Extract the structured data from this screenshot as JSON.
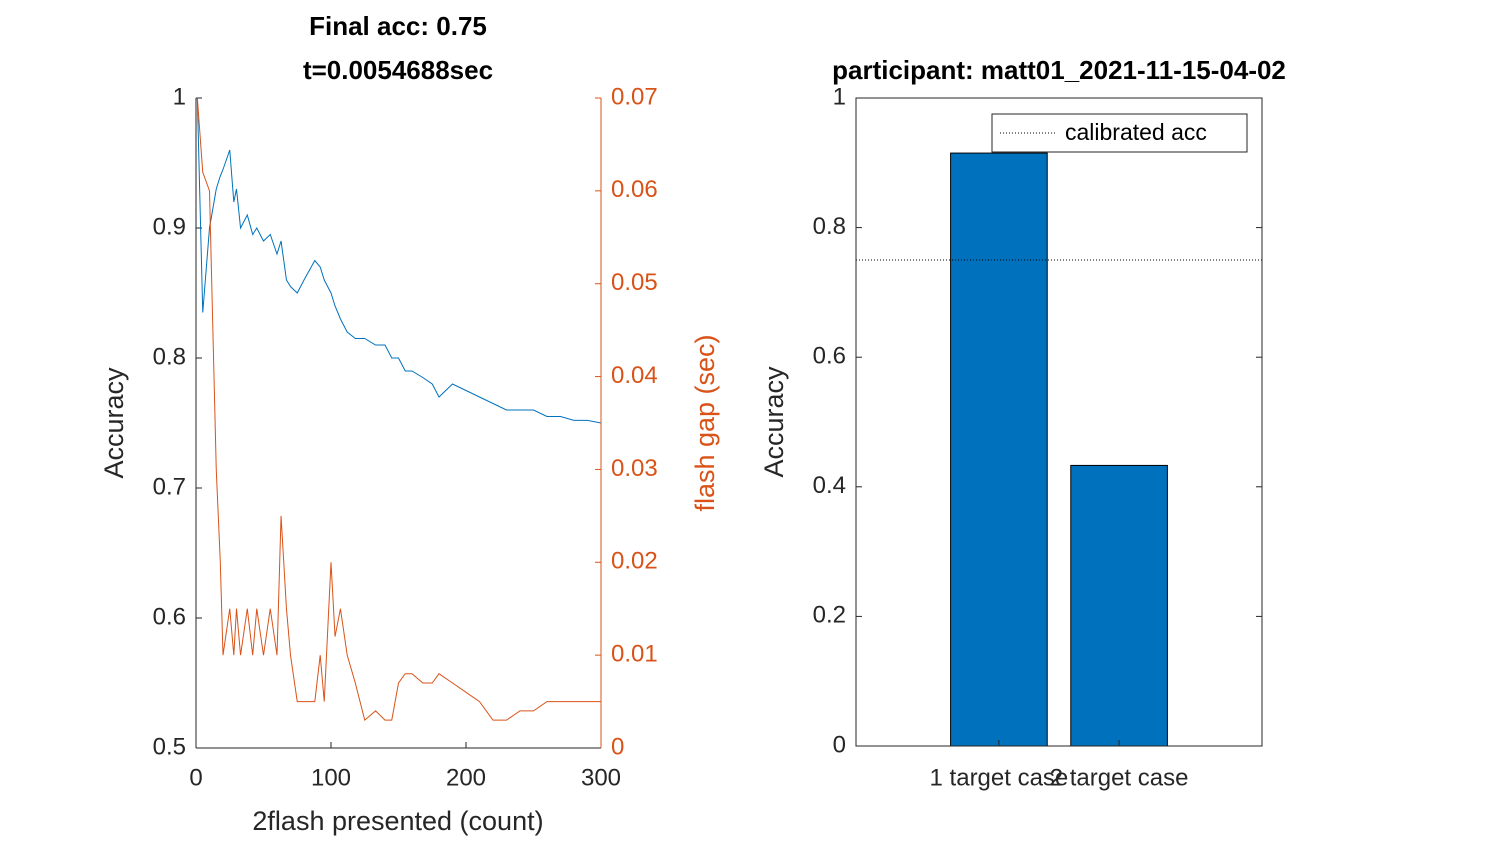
{
  "chart_data": [
    {
      "type": "line",
      "title": [
        "Final acc: 0.75",
        "t=0.0054688sec"
      ],
      "xlabel": "2flash presented (count)",
      "ylabel": "Accuracy",
      "y2label": "flash gap (sec)",
      "x": [
        1,
        5,
        10,
        15,
        18,
        20,
        25,
        28,
        30,
        33,
        38,
        42,
        45,
        50,
        55,
        60,
        63,
        67,
        70,
        75,
        80,
        88,
        92,
        95,
        100,
        103,
        107,
        112,
        118,
        125,
        133,
        140,
        145,
        150,
        155,
        160,
        168,
        175,
        180,
        190,
        200,
        210,
        220,
        230,
        240,
        250,
        260,
        270,
        280,
        290,
        300
      ],
      "series": [
        {
          "color": "#0072BD",
          "axis": "y",
          "values": [
            1.0,
            0.835,
            0.9,
            0.93,
            0.94,
            0.945,
            0.96,
            0.92,
            0.93,
            0.9,
            0.91,
            0.895,
            0.9,
            0.89,
            0.895,
            0.88,
            0.89,
            0.86,
            0.855,
            0.85,
            0.86,
            0.875,
            0.87,
            0.86,
            0.85,
            0.84,
            0.83,
            0.82,
            0.815,
            0.815,
            0.81,
            0.81,
            0.8,
            0.8,
            0.79,
            0.79,
            0.785,
            0.78,
            0.77,
            0.78,
            0.775,
            0.77,
            0.765,
            0.76,
            0.76,
            0.76,
            0.755,
            0.755,
            0.752,
            0.752,
            0.75
          ]
        },
        {
          "color": "#D95319",
          "axis": "y2",
          "values": [
            0.07,
            0.062,
            0.06,
            0.03,
            0.02,
            0.01,
            0.015,
            0.01,
            0.015,
            0.01,
            0.015,
            0.01,
            0.015,
            0.01,
            0.015,
            0.01,
            0.025,
            0.015,
            0.01,
            0.005,
            0.005,
            0.005,
            0.01,
            0.005,
            0.02,
            0.012,
            0.015,
            0.01,
            0.007,
            0.003,
            0.004,
            0.003,
            0.003,
            0.007,
            0.008,
            0.008,
            0.007,
            0.007,
            0.008,
            0.007,
            0.006,
            0.005,
            0.003,
            0.003,
            0.004,
            0.004,
            0.005,
            0.005,
            0.005,
            0.005,
            0.005
          ]
        }
      ],
      "xlim": [
        0,
        300
      ],
      "xticks": [
        0,
        100,
        200,
        300
      ],
      "ylim": [
        0.5,
        1
      ],
      "yticks": [
        0.5,
        0.6,
        0.7,
        0.8,
        0.9,
        1
      ],
      "y2lim": [
        0,
        0.07
      ],
      "y2ticks": [
        0,
        0.01,
        0.02,
        0.03,
        0.04,
        0.05,
        0.06,
        0.07
      ]
    },
    {
      "type": "bar",
      "title": "participant: matt01_2021-11-15-04-02",
      "ylabel": "Accuracy",
      "categories": [
        "1 target case",
        "2 target case"
      ],
      "values": [
        0.915,
        0.433
      ],
      "color": "#0072BD",
      "ylim": [
        0,
        1
      ],
      "yticks": [
        0,
        0.2,
        0.4,
        0.6,
        0.8,
        1
      ],
      "reference_line": {
        "name": "calibrated acc",
        "value": 0.75,
        "color": "#000000"
      },
      "legend": "top-right"
    }
  ]
}
